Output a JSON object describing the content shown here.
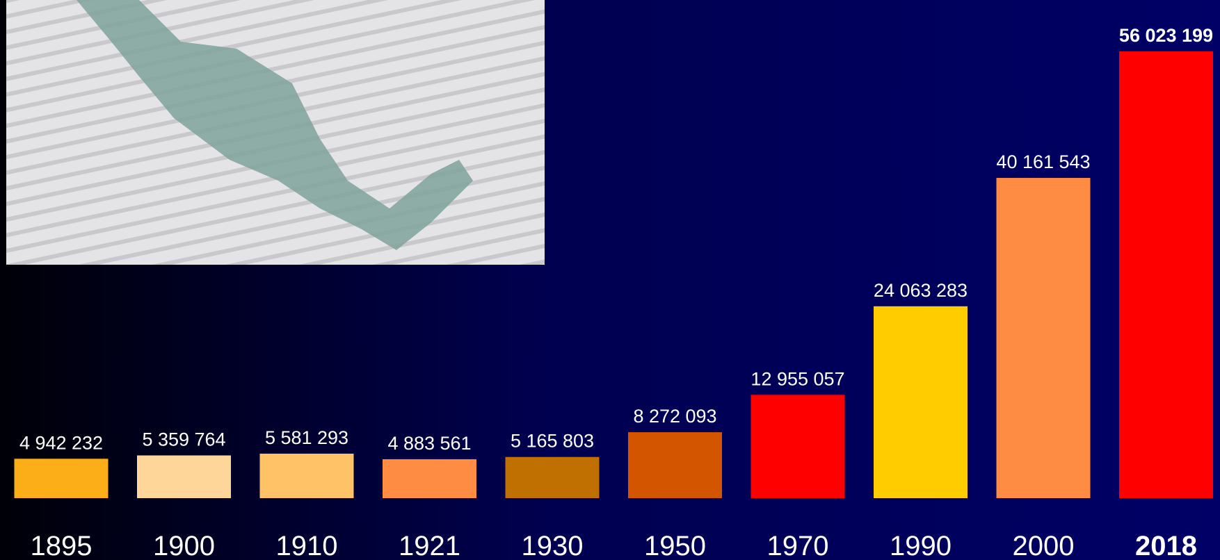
{
  "chart_data": {
    "type": "bar",
    "categories": [
      "1895",
      "1900",
      "1910",
      "1921",
      "1930",
      "1950",
      "1970",
      "1990",
      "2000",
      "2018"
    ],
    "values": [
      4942232,
      5359764,
      5581293,
      4883561,
      5165803,
      8272093,
      12955057,
      24063283,
      40161543,
      56023199
    ],
    "value_labels": [
      "4 942 232",
      "5 359 764",
      "5 581 293",
      "4 883 561",
      "5 165 803",
      "8 272 093",
      "12 955 057",
      "24 063 283",
      "40 161 543",
      "56 023 199"
    ],
    "colors": [
      "#FBAE17",
      "#FFD699",
      "#FFC266",
      "#FF8C42",
      "#C07000",
      "#D45500",
      "#FF0000",
      "#FFCC00",
      "#FF8C42",
      "#FF0000"
    ]
  }
}
